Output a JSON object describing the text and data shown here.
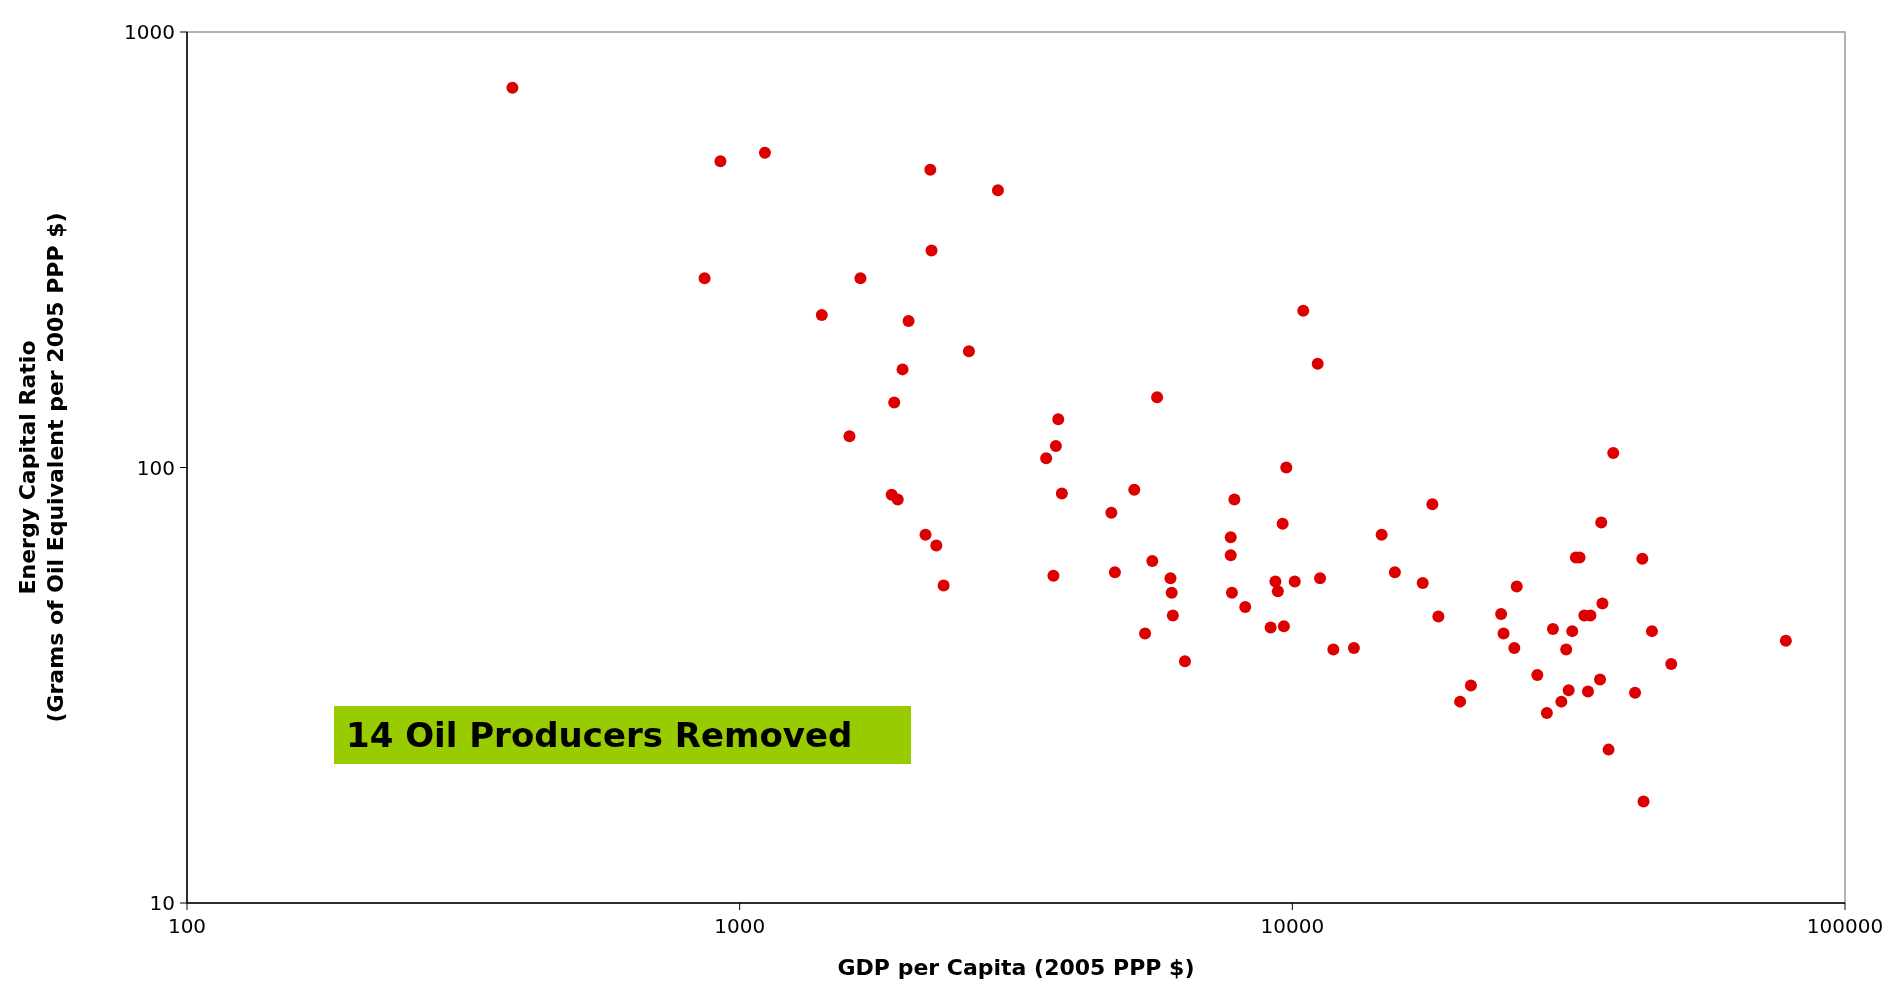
{
  "chart_data": {
    "type": "scatter",
    "xlabel": "GDP per Capita (2005 PPP $)",
    "ylabel": "Energy Capital Ratio\n(Grams of Oil Equivalent per 2005 PPP $)",
    "log": "xy",
    "xlim": [
      100,
      100000
    ],
    "xticks": [
      100,
      1000,
      10000,
      100000
    ],
    "ylim": [
      10,
      1000
    ],
    "yticks": [
      10,
      100,
      1000
    ],
    "grid": false,
    "marker": "circle",
    "annotations": [
      "14 Oil Producers Removed"
    ],
    "series": [
      {
        "color": "#dd0000",
        "x": [
          388,
          923,
          1111,
          864,
          2213,
          2933,
          2224,
          1654,
          1408,
          2021,
          2599,
          1971,
          1904,
          1580,
          3771,
          3734,
          3586,
          5693,
          10465,
          11114,
          9752,
          38080,
          1884,
          1932,
          3828,
          5176,
          4705,
          7855,
          17920,
          2169,
          2269,
          2339,
          3696,
          4775,
          5580,
          6019,
          6049,
          6078,
          5414,
          6393,
          7736,
          7736,
          7775,
          8218,
          9605,
          9320,
          9415,
          10101,
          11225,
          9135,
          9654,
          11864,
          12925,
          14506,
          15330,
          17215,
          18375,
          20117,
          21043,
          23865,
          24107,
          25215,
          25470,
          27752,
          28880,
          29615,
          30675,
          31300,
          31623,
          32100,
          32590,
          33090,
          33760,
          34620,
          34270,
          36220,
          36400,
          36040,
          37340,
          41700,
          42980,
          43200,
          44740,
          48480,
          78160
        ],
        "values": [
          745,
          505,
          528,
          272,
          483,
          433,
          315,
          272,
          224,
          217,
          185,
          168,
          141,
          118,
          129,
          112,
          105,
          145,
          229,
          173,
          100,
          108,
          86.6,
          84.4,
          87.2,
          88.9,
          78.7,
          84.4,
          82.3,
          70.1,
          66.2,
          53.6,
          56.4,
          57.5,
          61,
          55.7,
          51.6,
          45.7,
          41.6,
          35.9,
          69.2,
          62.9,
          51.6,
          47.8,
          74.3,
          54.7,
          52,
          54.7,
          55.7,
          42.9,
          43.2,
          38.2,
          38.5,
          70.1,
          57.5,
          54.3,
          45.5,
          29,
          31.6,
          46.1,
          41.6,
          38.5,
          53.3,
          33.4,
          27.3,
          42.6,
          29,
          38.2,
          30.8,
          42.1,
          62.1,
          62.1,
          45.7,
          45.7,
          30.6,
          74.8,
          48.7,
          32.6,
          22.5,
          30.4,
          61.7,
          17.1,
          42.1,
          35.4,
          40
        ]
      }
    ]
  }
}
